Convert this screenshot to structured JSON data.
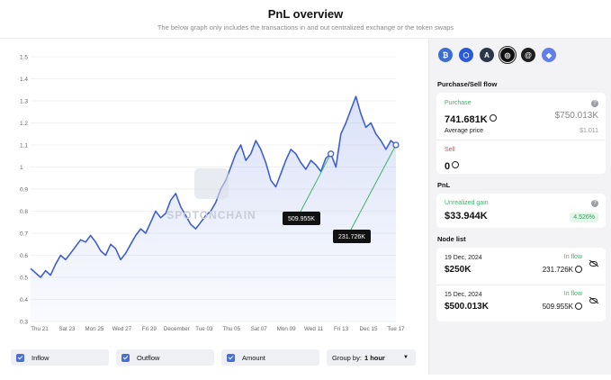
{
  "header": {
    "title": "PnL overview",
    "subtitle": "The below graph only includes the transactions in and out centralized exchange or the token swaps"
  },
  "watermark": "SPOTONCHAIN",
  "chart_data": {
    "type": "line",
    "ylim": [
      0.3,
      1.5
    ],
    "yticks": [
      "1.5",
      "1.4",
      "1.3",
      "1.2",
      "1.1",
      "1",
      "0.9",
      "0.8",
      "0.7",
      "0.6",
      "0.5",
      "0.4",
      "0.3"
    ],
    "xticks": [
      "Thu 21",
      "Sat 23",
      "Mon 25",
      "Wed 27",
      "Fri 29",
      "December",
      "Tue 03",
      "Thu 05",
      "Sat 07",
      "Mon 09",
      "Wed 11",
      "Fri 13",
      "Dec 15",
      "Tue 17"
    ],
    "series": [
      {
        "values": [
          0.54,
          0.52,
          0.5,
          0.53,
          0.51,
          0.56,
          0.6,
          0.58,
          0.61,
          0.64,
          0.67,
          0.66,
          0.69,
          0.66,
          0.62,
          0.6,
          0.65,
          0.63,
          0.58,
          0.61,
          0.65,
          0.69,
          0.72,
          0.7,
          0.75,
          0.8,
          0.77,
          0.79,
          0.85,
          0.88,
          0.82,
          0.78,
          0.74,
          0.72,
          0.75,
          0.78,
          0.8,
          0.84,
          0.9,
          0.94,
          1.0,
          1.06,
          1.1,
          1.03,
          1.06,
          1.12,
          1.08,
          1.02,
          0.94,
          0.91,
          0.97,
          1.03,
          1.08,
          1.06,
          1.02,
          0.99,
          1.03,
          1.01,
          0.98,
          1.04,
          1.06,
          1.0,
          1.15,
          1.2,
          1.26,
          1.32,
          1.24,
          1.18,
          1.2,
          1.15,
          1.12,
          1.08,
          1.12,
          1.1
        ]
      }
    ],
    "markers": [
      {
        "label": "509.955K",
        "x_index": 60
      },
      {
        "label": "231.726K",
        "x_index": 73
      }
    ]
  },
  "legend": {
    "inflow": "Inflow",
    "outflow": "Outflow",
    "amount": "Amount",
    "group_by_label": "Group by:",
    "group_by_value": "1 hour"
  },
  "chains": [
    {
      "name": "bitcoin-icon",
      "color": "#3b6fd6",
      "glyph": "₿"
    },
    {
      "name": "chainlink-icon",
      "color": "#2a5ada",
      "glyph": "⬡"
    },
    {
      "name": "arbitrum-icon",
      "color": "#2d374b",
      "glyph": "A"
    },
    {
      "name": "selected-chain-icon",
      "color": "#111111",
      "glyph": "◎"
    },
    {
      "name": "spiral-chain-icon",
      "color": "#1f1f1f",
      "glyph": "@"
    },
    {
      "name": "ethereum-icon",
      "color": "#627eea",
      "glyph": "◆"
    }
  ],
  "flow": {
    "section_title": "Purchase/Sell flow",
    "purchase_label": "Purchase",
    "purchase_amount": "741.681K",
    "purchase_value": "$750.013K",
    "avg_price_label": "Average price",
    "avg_price_value": "$1.011",
    "sell_label": "Sell",
    "sell_amount": "0"
  },
  "pnl": {
    "section_title": "PnL",
    "unrealized_label": "Unrealized gain",
    "unrealized_value": "$33.944K",
    "unrealized_pct": "4.526%"
  },
  "node_list": {
    "section_title": "Node list",
    "nodes": [
      {
        "date": "19 Dec, 2024",
        "value": "$250K",
        "flow_label": "In flow",
        "amount": "231.726K"
      },
      {
        "date": "15 Dec, 2024",
        "value": "$500.013K",
        "flow_label": "In flow",
        "amount": "509.955K"
      }
    ]
  }
}
